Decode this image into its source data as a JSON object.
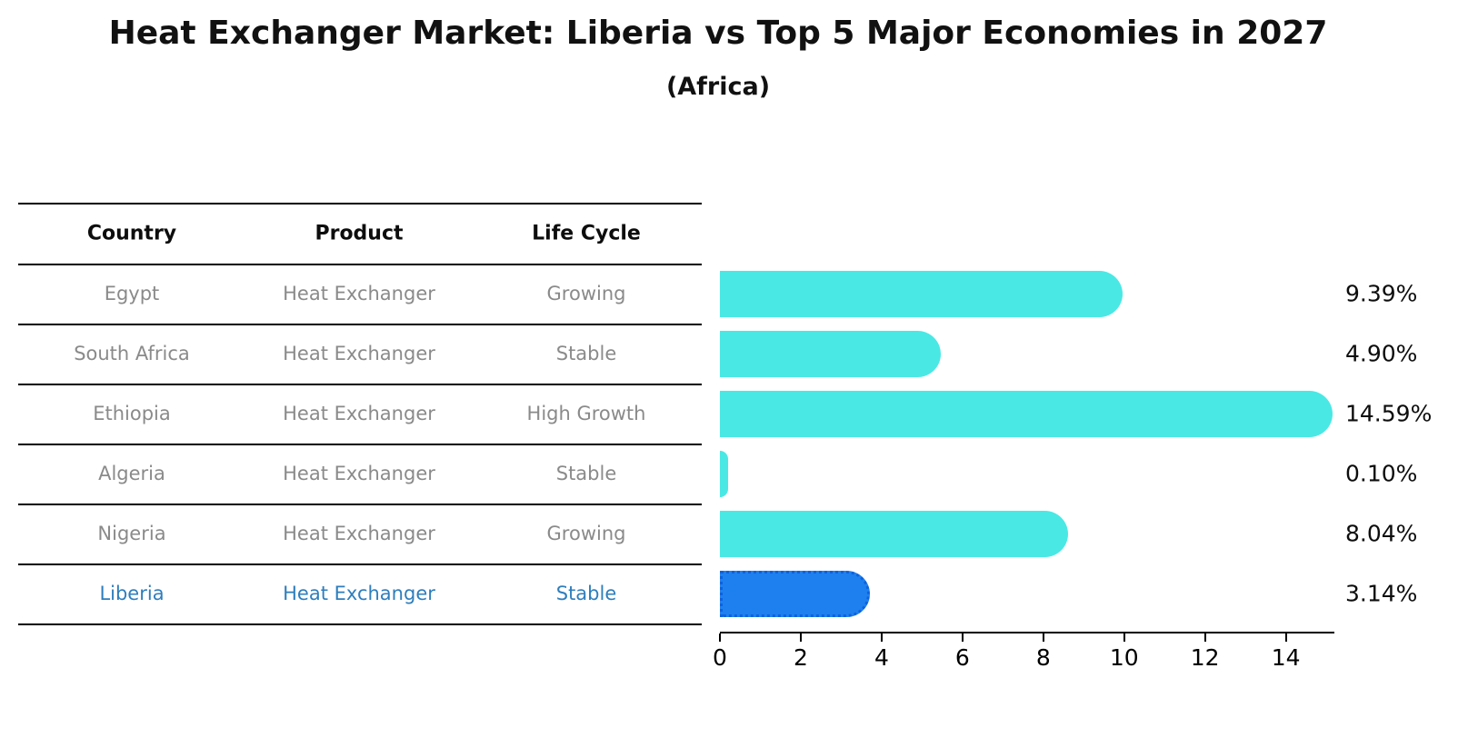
{
  "chart": {
    "title": "Heat Exchanger Market: Liberia vs Top 5 Major Economies in 2027",
    "subtitle": "(Africa)"
  },
  "table": {
    "headers": [
      "Country",
      "Product",
      "Life Cycle"
    ],
    "rows": [
      {
        "country": "Egypt",
        "product": "Heat Exchanger",
        "life_cycle": "Growing"
      },
      {
        "country": "South Africa",
        "product": "Heat Exchanger",
        "life_cycle": "Stable"
      },
      {
        "country": "Ethiopia",
        "product": "Heat Exchanger",
        "life_cycle": "High Growth"
      },
      {
        "country": "Algeria",
        "product": "Heat Exchanger",
        "life_cycle": "Stable"
      },
      {
        "country": "Nigeria",
        "product": "Heat Exchanger",
        "life_cycle": "Growing"
      },
      {
        "country": "Liberia",
        "product": "Heat Exchanger",
        "life_cycle": "Stable"
      }
    ]
  },
  "chart_data": {
    "type": "bar",
    "orientation": "horizontal",
    "title": "Heat Exchanger Market: Liberia vs Top 5 Major Economies in 2027",
    "subtitle": "(Africa)",
    "categories": [
      "Egypt",
      "South Africa",
      "Ethiopia",
      "Algeria",
      "Nigeria",
      "Liberia"
    ],
    "values": [
      9.39,
      4.9,
      14.59,
      0.1,
      8.04,
      3.14
    ],
    "value_labels": [
      "9.39%",
      "4.90%",
      "14.59%",
      "0.10%",
      "8.04%",
      "3.14%"
    ],
    "x_ticks": [
      0,
      2,
      4,
      6,
      8,
      10,
      12,
      14
    ],
    "xlim": [
      0,
      15.2
    ],
    "grid": false,
    "legend": "none",
    "highlight_index": 5,
    "colors": {
      "bar": "#4AE8E4",
      "highlight_bar": "#1E80EE",
      "highlight_edge": "#0E62DC",
      "row_text": "#8A8A8A",
      "highlight_row_text": "#2E7EBD",
      "header_text": "#0D0D0D",
      "axis": "#000000"
    }
  }
}
